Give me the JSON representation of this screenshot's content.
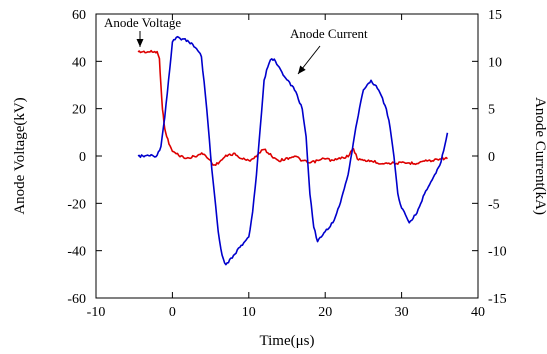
{
  "chart_data": {
    "type": "line",
    "xlabel": "Time(μs)",
    "ylabel_left": "Anode Voltage(kV)",
    "ylabel_right": "Anode Current(kA)",
    "xlim": [
      -10,
      40
    ],
    "ylim_left": [
      -60,
      60
    ],
    "ylim_right": [
      -15,
      15
    ],
    "xticks": [
      -10,
      0,
      10,
      20,
      30,
      40
    ],
    "yticks_left": [
      -60,
      -40,
      -20,
      0,
      20,
      40,
      60
    ],
    "yticks_right": [
      -15,
      -10,
      -5,
      0,
      5,
      10,
      15
    ],
    "grid": false,
    "annotations": [
      {
        "text": "Anode Voltage",
        "series": "Anode Voltage"
      },
      {
        "text": "Anode Current",
        "series": "Anode Current"
      }
    ],
    "series": [
      {
        "name": "Anode Voltage",
        "axis": "left",
        "color": "#dd0000",
        "x": [
          -4.5,
          -2,
          -1.7,
          -1.5,
          -1.3,
          -1.1,
          -0.9,
          -0.6,
          -0.3,
          0,
          0.5,
          1,
          2,
          3,
          4,
          5,
          5.5,
          6,
          7,
          8,
          9,
          10,
          11,
          12,
          13,
          14,
          15,
          16,
          17,
          18,
          19,
          20,
          21,
          22,
          23,
          23.7,
          24.2,
          25,
          26,
          27,
          28,
          29,
          30,
          31,
          32,
          33,
          34,
          35,
          36
        ],
        "y": [
          44,
          44,
          41,
          30,
          20,
          14,
          10,
          7,
          4,
          2,
          1,
          0,
          -1,
          0,
          1,
          -2,
          -4,
          -3,
          0,
          1,
          -1,
          -2,
          0,
          3,
          0,
          -2,
          -1,
          0,
          -2,
          -3,
          -2,
          -1,
          -2,
          -1,
          0,
          3,
          -1,
          -2,
          -2,
          -3,
          -3,
          -3,
          -3,
          -3,
          -3,
          -2,
          -2,
          -1,
          -1
        ]
      },
      {
        "name": "Anode Current",
        "axis": "right",
        "color": "#0000cc",
        "x": [
          -4.5,
          -2,
          -1.5,
          -1,
          -0.5,
          0,
          0.5,
          1,
          2,
          3,
          3.8,
          4.5,
          5,
          5.5,
          6,
          6.5,
          7,
          8,
          9,
          10,
          10.5,
          11,
          11.5,
          12,
          12.5,
          13,
          13.5,
          14,
          15,
          16,
          17,
          17.5,
          18,
          18.5,
          19,
          20,
          21,
          22,
          23,
          24,
          25,
          26,
          27,
          28,
          28.5,
          29,
          29.5,
          30,
          31,
          32,
          33,
          34,
          35,
          35.5,
          36
        ],
        "y": [
          0,
          0,
          1,
          4,
          8,
          12,
          12.5,
          12.4,
          12.2,
          11.5,
          10.5,
          5,
          0,
          -4,
          -8,
          -10.5,
          -11.5,
          -10.5,
          -9.5,
          -8.5,
          -6,
          -2,
          3,
          8,
          9.5,
          10.3,
          10,
          9.3,
          8,
          7,
          5,
          2,
          -4,
          -7.5,
          -9,
          -8,
          -7,
          -5,
          -2,
          3,
          7,
          8,
          7,
          5,
          3,
          0,
          -4,
          -5.5,
          -7,
          -6,
          -4,
          -2.5,
          -1,
          0.5,
          2.5
        ]
      }
    ]
  }
}
